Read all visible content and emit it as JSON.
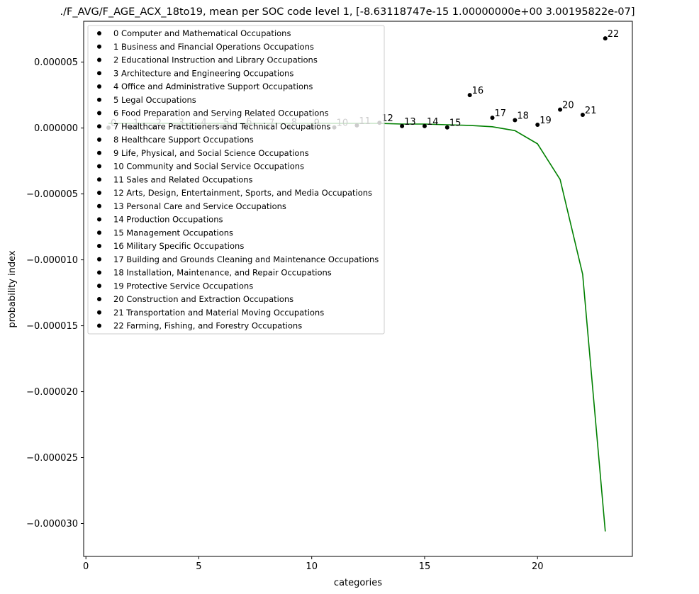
{
  "chart_data": {
    "type": "scatter",
    "title": "./F_AVG/F_AGE_ACX_18to19, mean per SOC code level 1, [-8.63118747e-15  1.00000000e+00  3.00195822e-07]",
    "xlabel": "categories",
    "ylabel": "probability index",
    "xlim": [
      -0.1,
      24.2
    ],
    "ylim": [
      -3.25e-05,
      8.1e-06
    ],
    "xticks": [
      0,
      5,
      10,
      15,
      20
    ],
    "yticks": [
      5e-06,
      0.0,
      -5e-06,
      -1e-05,
      -1.5e-05,
      -2e-05,
      -2.5e-05,
      -3e-05
    ],
    "ytick_labels": [
      "0.000005",
      "0.000000",
      "−0.000005",
      "−0.000010",
      "−0.000015",
      "−0.000020",
      "−0.000025",
      "−0.000030"
    ],
    "grid": false,
    "legend_position": "upper-left",
    "points": [
      {
        "label": "0",
        "x": 1,
        "y": 3e-08
      },
      {
        "label": "1",
        "x": 2,
        "y": 5e-08
      },
      {
        "label": "2",
        "x": 3,
        "y": 6e-08
      },
      {
        "label": "3",
        "x": 4,
        "y": 8e-08
      },
      {
        "label": "4",
        "x": 5,
        "y": 9e-08
      },
      {
        "label": "5",
        "x": 6,
        "y": 1e-07
      },
      {
        "label": "6",
        "x": 7,
        "y": 1.5e-07
      },
      {
        "label": "7",
        "x": 8,
        "y": 5e-08
      },
      {
        "label": "8",
        "x": 9,
        "y": 1e-07
      },
      {
        "label": "9",
        "x": 10,
        "y": 5e-08
      },
      {
        "label": "10",
        "x": 11,
        "y": 5e-08
      },
      {
        "label": "11",
        "x": 12,
        "y": 2e-07
      },
      {
        "label": "12",
        "x": 13,
        "y": 4e-07
      },
      {
        "label": "13",
        "x": 14,
        "y": 1.5e-07
      },
      {
        "label": "14",
        "x": 15,
        "y": 1.5e-07
      },
      {
        "label": "15",
        "x": 16,
        "y": 5e-08
      },
      {
        "label": "16",
        "x": 17,
        "y": 2.5e-06
      },
      {
        "label": "17",
        "x": 18,
        "y": 7.8e-07
      },
      {
        "label": "18",
        "x": 19,
        "y": 6e-07
      },
      {
        "label": "19",
        "x": 20,
        "y": 2.5e-07
      },
      {
        "label": "20",
        "x": 21,
        "y": 1.4e-06
      },
      {
        "label": "21",
        "x": 22,
        "y": 1e-06
      },
      {
        "label": "22",
        "x": 23,
        "y": 6.8e-06
      }
    ],
    "fit_line": {
      "color": "#008000",
      "x": [
        1,
        2,
        3,
        4,
        5,
        6,
        7,
        8,
        9,
        10,
        11,
        12,
        13,
        14,
        15,
        16,
        17,
        18,
        19,
        20,
        21,
        22,
        23
      ],
      "y": [
        3.5e-07,
        3.5e-07,
        3.5e-07,
        3.5e-07,
        3.5e-07,
        3.5e-07,
        3.5e-07,
        3.5e-07,
        3.5e-07,
        3.5e-07,
        3.5e-07,
        3.5e-07,
        3.5e-07,
        3e-07,
        3e-07,
        2.5e-07,
        2e-07,
        1e-07,
        -2e-07,
        -1.2e-06,
        -3.9e-06,
        -1.11e-05,
        -3.06e-05
      ]
    },
    "legend": [
      "0 Computer and Mathematical Occupations",
      "1 Business and Financial Operations Occupations",
      "2 Educational Instruction and Library Occupations",
      "3 Architecture and Engineering Occupations",
      "4 Office and Administrative Support Occupations",
      "5 Legal Occupations",
      "6 Food Preparation and Serving Related Occupations",
      "7 Healthcare Practitioners and Technical Occupations",
      "8 Healthcare Support Occupations",
      "9 Life, Physical, and Social Science Occupations",
      "10 Community and Social Service Occupations",
      "11 Sales and Related Occupations",
      "12 Arts, Design, Entertainment, Sports, and Media Occupations",
      "13 Personal Care and Service Occupations",
      "14 Production Occupations",
      "15 Management Occupations",
      "16 Military Specific Occupations",
      "17 Building and Grounds Cleaning and Maintenance Occupations",
      "18 Installation, Maintenance, and Repair Occupations",
      "19 Protective Service Occupations",
      "20 Construction and Extraction Occupations",
      "21 Transportation and Material Moving Occupations",
      "22 Farming, Fishing, and Forestry Occupations"
    ]
  }
}
